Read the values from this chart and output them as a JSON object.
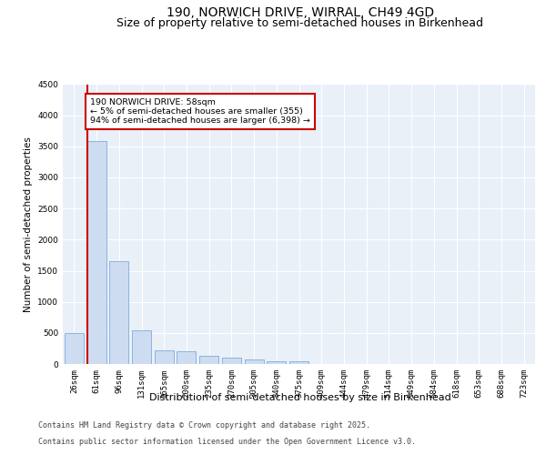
{
  "title": "190, NORWICH DRIVE, WIRRAL, CH49 4GD",
  "subtitle": "Size of property relative to semi-detached houses in Birkenhead",
  "xlabel": "Distribution of semi-detached houses by size in Birkenhead",
  "ylabel": "Number of semi-detached properties",
  "categories": [
    "26sqm",
    "61sqm",
    "96sqm",
    "131sqm",
    "165sqm",
    "200sqm",
    "235sqm",
    "270sqm",
    "305sqm",
    "340sqm",
    "375sqm",
    "409sqm",
    "444sqm",
    "479sqm",
    "514sqm",
    "549sqm",
    "584sqm",
    "618sqm",
    "653sqm",
    "688sqm",
    "723sqm"
  ],
  "values": [
    500,
    3580,
    1650,
    540,
    220,
    210,
    130,
    100,
    70,
    50,
    40,
    0,
    0,
    0,
    0,
    0,
    0,
    0,
    0,
    0,
    0
  ],
  "bar_color": "#cddcf0",
  "bar_edge_color": "#6a9fd8",
  "red_line_x": 0.575,
  "annotation_title": "190 NORWICH DRIVE: 58sqm",
  "annotation_line1": "← 5% of semi-detached houses are smaller (355)",
  "annotation_line2": "94% of semi-detached houses are larger (6,398) →",
  "annotation_box_color": "#ffffff",
  "annotation_box_edge": "#cc0000",
  "red_line_color": "#cc0000",
  "ylim": [
    0,
    4500
  ],
  "yticks": [
    0,
    500,
    1000,
    1500,
    2000,
    2500,
    3000,
    3500,
    4000,
    4500
  ],
  "footer_line1": "Contains HM Land Registry data © Crown copyright and database right 2025.",
  "footer_line2": "Contains public sector information licensed under the Open Government Licence v3.0.",
  "bg_color": "#eaf0f8",
  "grid_color": "#ffffff",
  "title_fontsize": 10,
  "subtitle_fontsize": 9,
  "ylabel_fontsize": 7.5,
  "xlabel_fontsize": 8,
  "tick_fontsize": 6.5,
  "footer_fontsize": 6
}
